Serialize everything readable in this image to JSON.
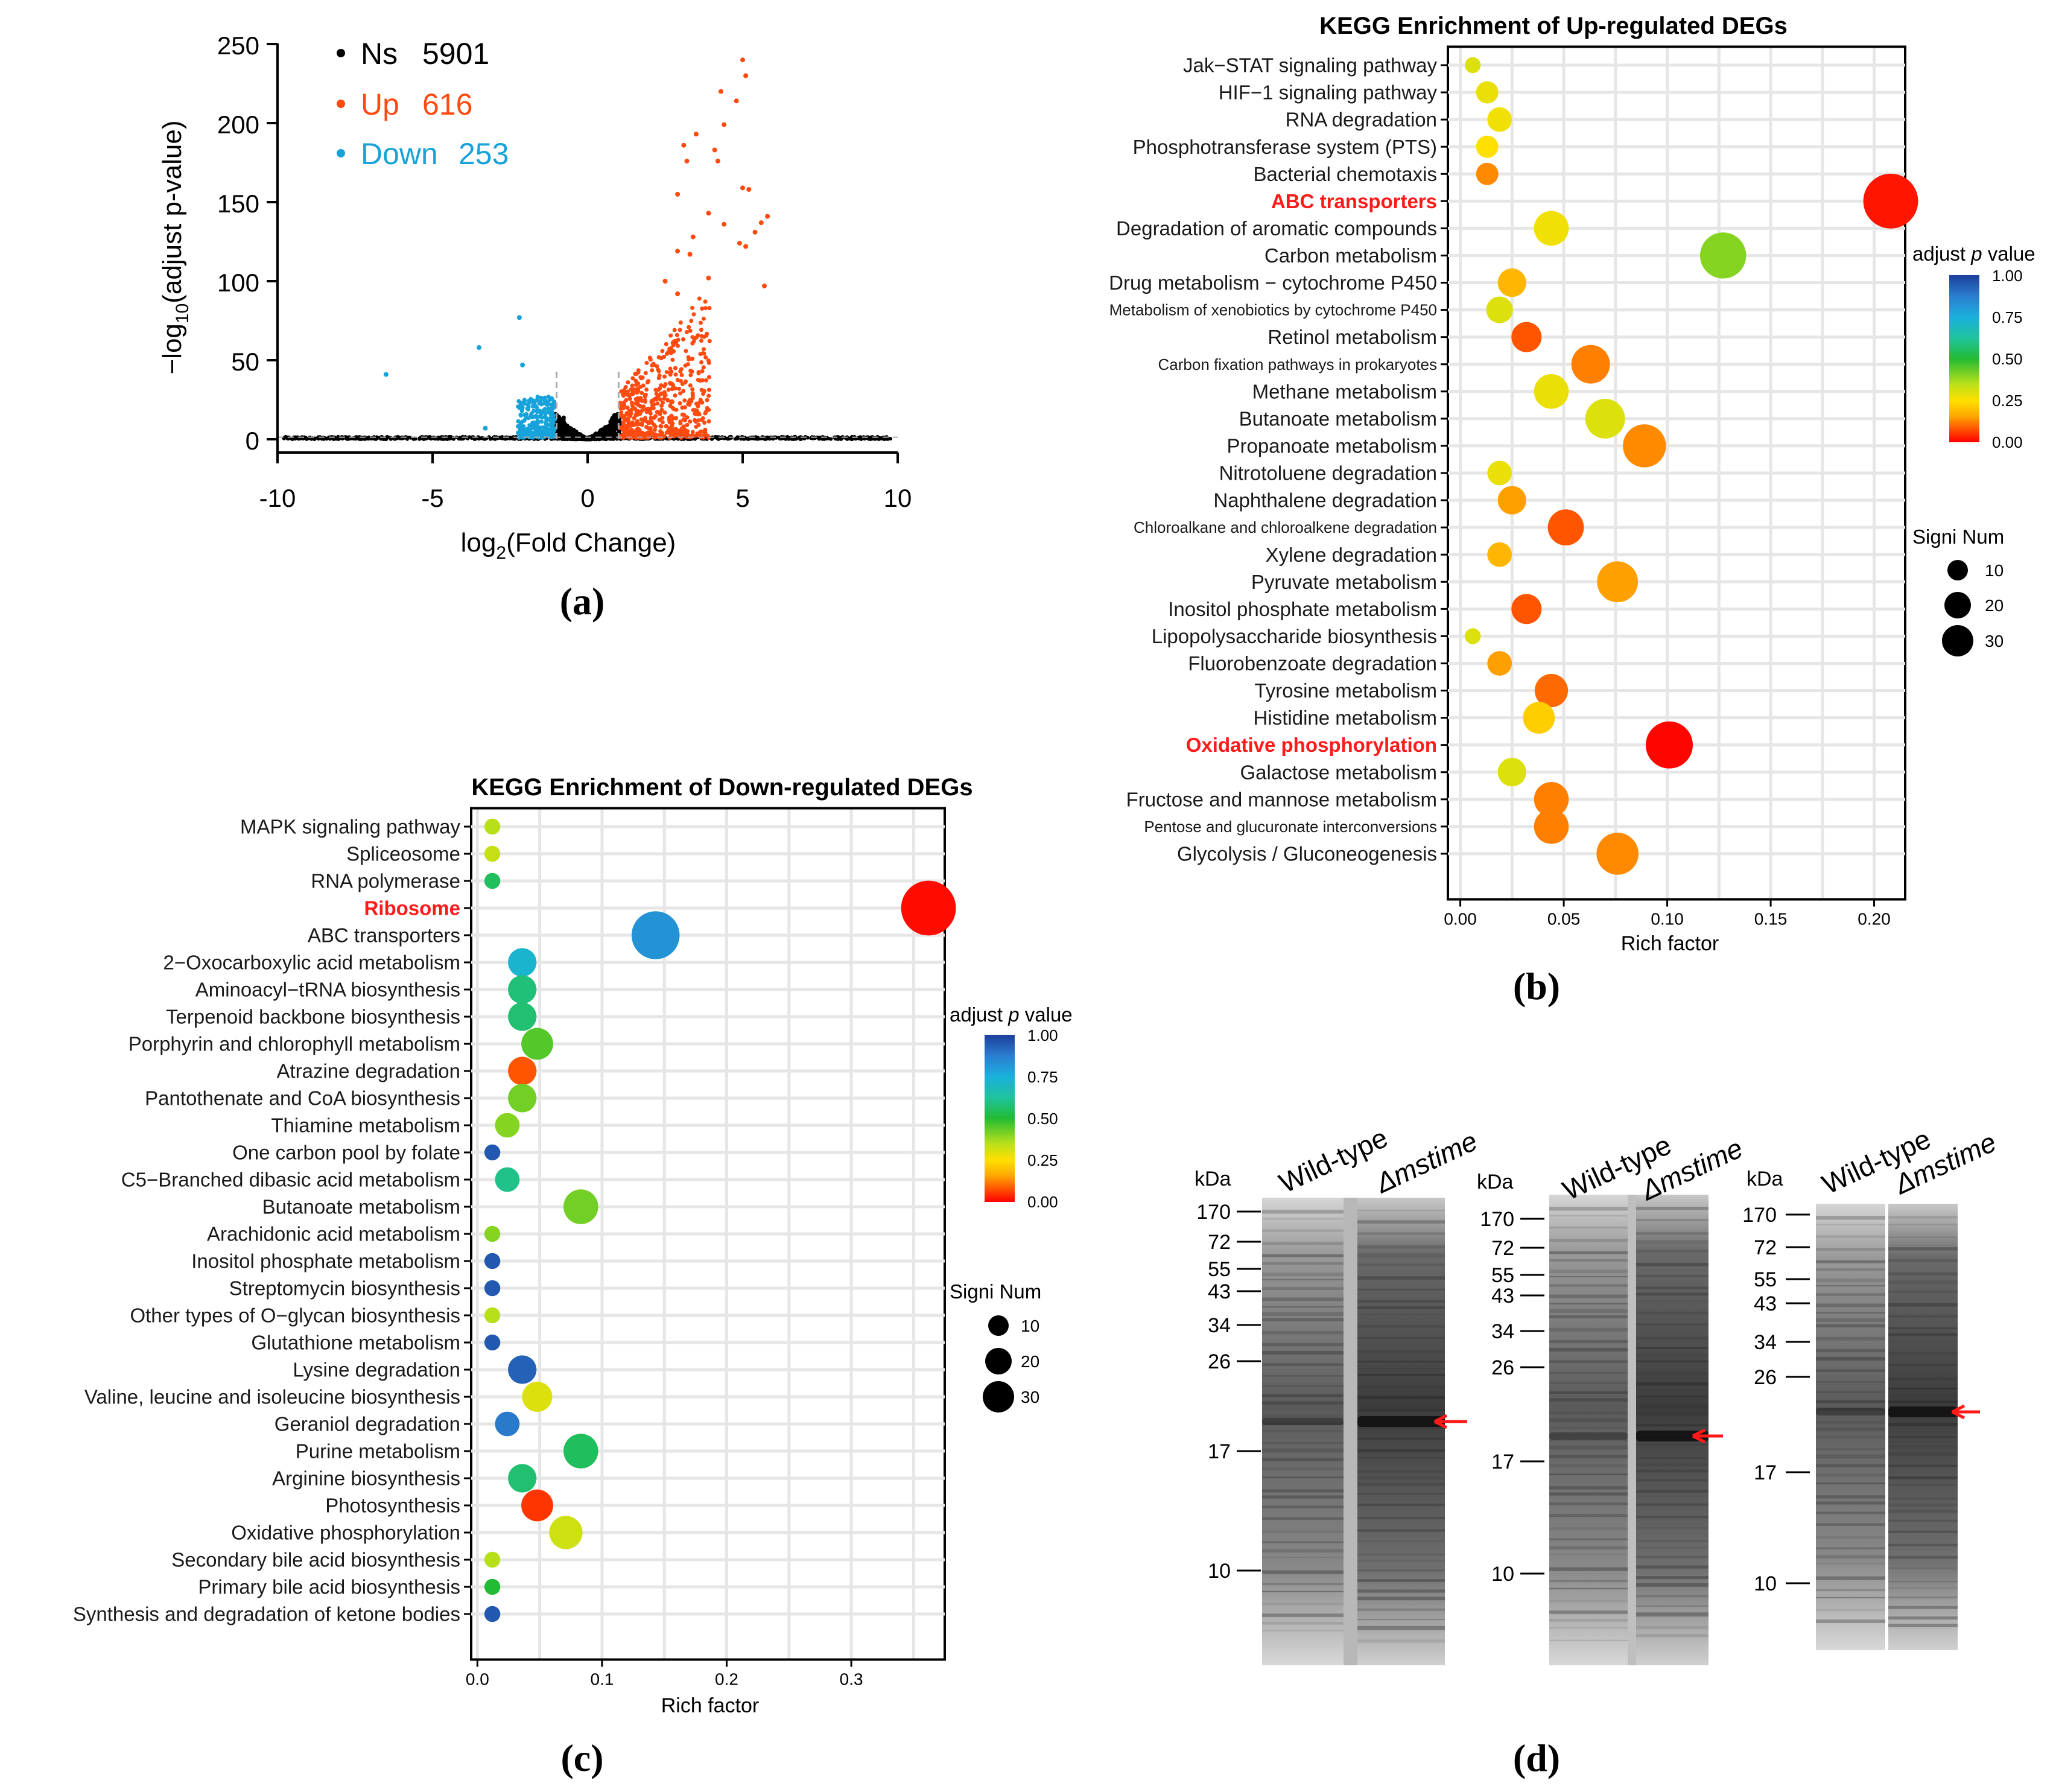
{
  "colors": {
    "ns": "#000000",
    "up": "#ff4a10",
    "down": "#17a3d9",
    "highlight": "#ff1a1a",
    "gel_arrow": "#ff1a1a"
  },
  "panel_labels": {
    "a": "(a)",
    "b": "(b)",
    "c": "(c)",
    "d": "(d)"
  },
  "chart_data": [
    {
      "id": "volcano",
      "type": "scatter",
      "xlabel_main": "log",
      "xlabel_sub": "2",
      "xlabel_rest": "(Fold Change)",
      "ylabel_main": "−log",
      "ylabel_sub": "10",
      "ylabel_rest": "(adjust p-value)",
      "xlim": [
        -10,
        10
      ],
      "ylim": [
        -8,
        250
      ],
      "xticks": [
        -10,
        -5,
        0,
        5,
        10
      ],
      "yticks": [
        0,
        50,
        100,
        150,
        200,
        250
      ],
      "xtick_labels": [
        "-10",
        "-5",
        "0",
        "5",
        "10"
      ],
      "ytick_labels": [
        "0",
        "50",
        "100",
        "150",
        "200",
        "250"
      ],
      "thresholds_x": [
        -1,
        1
      ],
      "legend": [
        {
          "key": "ns",
          "name": "Ns",
          "count": "5901"
        },
        {
          "key": "up",
          "name": "Up",
          "count": "616"
        },
        {
          "key": "down",
          "name": "Down",
          "count": "253"
        }
      ],
      "up_outliers": [
        [
          5.0,
          240
        ],
        [
          5.1,
          230
        ],
        [
          4.8,
          214
        ],
        [
          4.3,
          220
        ],
        [
          4.4,
          199
        ],
        [
          3.5,
          193
        ],
        [
          3.1,
          186
        ],
        [
          4.1,
          183
        ],
        [
          4.2,
          176
        ],
        [
          3.2,
          176
        ],
        [
          5.0,
          159
        ],
        [
          5.2,
          158
        ],
        [
          2.9,
          155
        ],
        [
          3.9,
          143
        ],
        [
          5.8,
          141
        ],
        [
          5.6,
          137
        ],
        [
          4.4,
          136
        ],
        [
          5.4,
          131
        ],
        [
          3.4,
          128
        ],
        [
          4.9,
          124
        ],
        [
          5.1,
          122
        ],
        [
          2.9,
          119
        ],
        [
          3.3,
          117
        ],
        [
          3.9,
          102
        ],
        [
          5.7,
          97
        ],
        [
          2.5,
          100
        ],
        [
          2.9,
          92
        ]
      ],
      "down_outliers": [
        [
          -6.5,
          41
        ],
        [
          -2.2,
          77
        ],
        [
          -3.5,
          58
        ],
        [
          -2.1,
          47
        ],
        [
          -3.3,
          7
        ]
      ]
    },
    {
      "id": "kegg_up",
      "type": "scatter",
      "title": "KEGG Enrichment of Up-regulated DEGs",
      "xlabel": "Rich factor",
      "xlim": [
        -0.006,
        0.215
      ],
      "xticks": [
        0.0,
        0.05,
        0.1,
        0.15,
        0.2
      ],
      "xtick_labels": [
        "0.00",
        "0.05",
        "0.10",
        "0.15",
        "0.20"
      ],
      "colorbar_title_a": "adjust ",
      "colorbar_title_p": "p",
      "colorbar_title_b": " value",
      "colorbar_ticks": [
        "1.00",
        "0.75",
        "0.50",
        "0.25",
        "0.00"
      ],
      "size_title": "Signi Num",
      "size_legend": [
        10,
        20,
        30
      ],
      "size_legend_labels": [
        "10",
        "20",
        "30"
      ],
      "pathways": [
        {
          "label": "Jak−STAT signaling pathway",
          "rich": 0.006,
          "p": 0.3,
          "count": 1,
          "small": false,
          "highlight": false
        },
        {
          "label": "HIF−1 signaling pathway",
          "rich": 0.013,
          "p": 0.28,
          "count": 3,
          "small": false,
          "highlight": false
        },
        {
          "label": "RNA degradation",
          "rich": 0.019,
          "p": 0.27,
          "count": 4,
          "small": false,
          "highlight": false
        },
        {
          "label": "Phosphotransferase system (PTS)",
          "rich": 0.013,
          "p": 0.25,
          "count": 3,
          "small": false,
          "highlight": false
        },
        {
          "label": "Bacterial chemotaxis",
          "rich": 0.013,
          "p": 0.13,
          "count": 3,
          "small": false,
          "highlight": false
        },
        {
          "label": "ABC transporters",
          "rich": 0.208,
          "p": 0.02,
          "count": 30,
          "small": false,
          "highlight": true
        },
        {
          "label": "Degradation of aromatic compounds",
          "rich": 0.044,
          "p": 0.27,
          "count": 10,
          "small": false,
          "highlight": false
        },
        {
          "label": "Carbon metabolism",
          "rich": 0.127,
          "p": 0.4,
          "count": 20,
          "small": false,
          "highlight": false
        },
        {
          "label": "Drug metabolism − cytochrome P450",
          "rich": 0.025,
          "p": 0.18,
          "count": 6,
          "small": false,
          "highlight": false
        },
        {
          "label": "Metabolism of xenobiotics by cytochrome P450",
          "rich": 0.019,
          "p": 0.3,
          "count": 5,
          "small": true,
          "highlight": false
        },
        {
          "label": "Retinol metabolism",
          "rich": 0.032,
          "p": 0.08,
          "count": 7,
          "small": false,
          "highlight": false
        },
        {
          "label": "Carbon fixation pathways in prokaryotes",
          "rich": 0.063,
          "p": 0.12,
          "count": 13,
          "small": true,
          "highlight": false
        },
        {
          "label": "Methane metabolism",
          "rich": 0.044,
          "p": 0.28,
          "count": 10,
          "small": false,
          "highlight": false
        },
        {
          "label": "Butanoate metabolism",
          "rich": 0.07,
          "p": 0.3,
          "count": 14,
          "small": false,
          "highlight": false
        },
        {
          "label": "Propanoate metabolism",
          "rich": 0.089,
          "p": 0.13,
          "count": 17,
          "small": false,
          "highlight": false
        },
        {
          "label": "Nitrotoluene degradation",
          "rich": 0.019,
          "p": 0.28,
          "count": 4,
          "small": false,
          "highlight": false
        },
        {
          "label": "Naphthalene degradation",
          "rich": 0.025,
          "p": 0.15,
          "count": 6,
          "small": false,
          "highlight": false
        },
        {
          "label": "Chloroalkane and chloroalkene degradation",
          "rich": 0.051,
          "p": 0.08,
          "count": 11,
          "small": true,
          "highlight": false
        },
        {
          "label": "Xylene degradation",
          "rich": 0.019,
          "p": 0.18,
          "count": 4,
          "small": false,
          "highlight": false
        },
        {
          "label": "Pyruvate metabolism",
          "rich": 0.076,
          "p": 0.15,
          "count": 15,
          "small": false,
          "highlight": false
        },
        {
          "label": "Inositol phosphate metabolism",
          "rich": 0.032,
          "p": 0.08,
          "count": 7,
          "small": false,
          "highlight": false
        },
        {
          "label": "Lipopolysaccharide biosynthesis",
          "rich": 0.006,
          "p": 0.3,
          "count": 1,
          "small": false,
          "highlight": false
        },
        {
          "label": "Fluorobenzoate degradation",
          "rich": 0.019,
          "p": 0.15,
          "count": 4,
          "small": false,
          "highlight": false
        },
        {
          "label": "Tyrosine metabolism",
          "rich": 0.044,
          "p": 0.1,
          "count": 9,
          "small": false,
          "highlight": false
        },
        {
          "label": "Histidine metabolism",
          "rich": 0.038,
          "p": 0.22,
          "count": 8,
          "small": false,
          "highlight": false
        },
        {
          "label": "Oxidative phosphorylation",
          "rich": 0.101,
          "p": 0.005,
          "count": 21,
          "small": false,
          "highlight": true
        },
        {
          "label": "Galactose metabolism",
          "rich": 0.025,
          "p": 0.3,
          "count": 6,
          "small": false,
          "highlight": false
        },
        {
          "label": "Fructose and mannose metabolism",
          "rich": 0.044,
          "p": 0.12,
          "count": 10,
          "small": false,
          "highlight": false
        },
        {
          "label": "Pentose and glucuronate  interconversions",
          "rich": 0.044,
          "p": 0.12,
          "count": 10,
          "small": true,
          "highlight": false
        },
        {
          "label": "Glycolysis / Gluconeogenesis",
          "rich": 0.076,
          "p": 0.13,
          "count": 16,
          "small": false,
          "highlight": false
        }
      ]
    },
    {
      "id": "kegg_down",
      "type": "scatter",
      "title": "KEGG Enrichment of Down-regulated DEGs",
      "xlabel": "Rich factor",
      "xlim": [
        -0.005,
        0.375
      ],
      "xticks": [
        0.0,
        0.1,
        0.2,
        0.3
      ],
      "xtick_labels": [
        "0.0",
        "0.1",
        "0.2",
        "0.3"
      ],
      "colorbar_title_a": "adjust ",
      "colorbar_title_p": "p",
      "colorbar_title_b": " value",
      "colorbar_ticks": [
        "1.00",
        "0.75",
        "0.50",
        "0.25",
        "0.00"
      ],
      "size_title": "Signi Num",
      "size_legend": [
        10,
        20,
        30
      ],
      "size_legend_labels": [
        "10",
        "20",
        "30"
      ],
      "pathways": [
        {
          "label": "MAPK signaling pathway",
          "rich": 0.012,
          "p": 0.35,
          "count": 1,
          "highlight": false
        },
        {
          "label": "Spliceosome",
          "rich": 0.012,
          "p": 0.33,
          "count": 1,
          "highlight": false
        },
        {
          "label": "RNA polymerase",
          "rich": 0.012,
          "p": 0.55,
          "count": 1,
          "highlight": false
        },
        {
          "label": "Ribosome",
          "rich": 0.362,
          "p": 0.01,
          "count": 30,
          "highlight": true
        },
        {
          "label": "ABC transporters",
          "rich": 0.143,
          "p": 0.82,
          "count": 22,
          "highlight": false
        },
        {
          "label": "2−Oxocarboxylic acid metabolism",
          "rich": 0.036,
          "p": 0.72,
          "count": 6,
          "highlight": false
        },
        {
          "label": "Aminoacyl−tRNA biosynthesis",
          "rich": 0.036,
          "p": 0.58,
          "count": 6,
          "highlight": false
        },
        {
          "label": "Terpenoid backbone biosynthesis",
          "rich": 0.036,
          "p": 0.57,
          "count": 6,
          "highlight": false
        },
        {
          "label": "Porphyrin and chlorophyll metabolism",
          "rich": 0.048,
          "p": 0.45,
          "count": 8,
          "highlight": false
        },
        {
          "label": "Atrazine degradation",
          "rich": 0.036,
          "p": 0.08,
          "count": 6,
          "highlight": false
        },
        {
          "label": "Pantothenate and CoA biosynthesis",
          "rich": 0.036,
          "p": 0.42,
          "count": 6,
          "highlight": false
        },
        {
          "label": "Thiamine metabolism",
          "rich": 0.024,
          "p": 0.4,
          "count": 4,
          "highlight": false
        },
        {
          "label": "One carbon pool by folate",
          "rich": 0.012,
          "p": 0.95,
          "count": 1,
          "highlight": false
        },
        {
          "label": "C5−Branched dibasic acid metabolism",
          "rich": 0.024,
          "p": 0.6,
          "count": 4,
          "highlight": false
        },
        {
          "label": "Butanoate metabolism",
          "rich": 0.083,
          "p": 0.42,
          "count": 10,
          "highlight": false
        },
        {
          "label": "Arachidonic acid metabolism",
          "rich": 0.012,
          "p": 0.4,
          "count": 1,
          "highlight": false
        },
        {
          "label": "Inositol phosphate metabolism",
          "rich": 0.012,
          "p": 0.95,
          "count": 1,
          "highlight": false
        },
        {
          "label": "Streptomycin biosynthesis",
          "rich": 0.012,
          "p": 0.95,
          "count": 1,
          "highlight": false
        },
        {
          "label": "Other types of O−glycan biosynthesis",
          "rich": 0.012,
          "p": 0.35,
          "count": 1,
          "highlight": false
        },
        {
          "label": "Glutathione metabolism",
          "rich": 0.012,
          "p": 0.95,
          "count": 1,
          "highlight": false
        },
        {
          "label": "Lysine degradation",
          "rich": 0.036,
          "p": 0.93,
          "count": 6,
          "highlight": false
        },
        {
          "label": "Valine, leucine and isoleucine biosynthesis",
          "rich": 0.048,
          "p": 0.3,
          "count": 7,
          "highlight": false
        },
        {
          "label": "Geraniol degradation",
          "rich": 0.024,
          "p": 0.88,
          "count": 4,
          "highlight": false
        },
        {
          "label": "Purine metabolism",
          "rich": 0.083,
          "p": 0.55,
          "count": 10,
          "highlight": false
        },
        {
          "label": "Arginine biosynthesis",
          "rich": 0.036,
          "p": 0.57,
          "count": 6,
          "highlight": false
        },
        {
          "label": "Photosynthesis",
          "rich": 0.048,
          "p": 0.05,
          "count": 8,
          "highlight": false
        },
        {
          "label": "Oxidative phosphorylation",
          "rich": 0.071,
          "p": 0.32,
          "count": 9,
          "highlight": false
        },
        {
          "label": "Secondary bile acid biosynthesis",
          "rich": 0.012,
          "p": 0.35,
          "count": 1,
          "highlight": false
        },
        {
          "label": "Primary bile acid biosynthesis",
          "rich": 0.012,
          "p": 0.5,
          "count": 1,
          "highlight": false
        },
        {
          "label": "Synthesis and degradation of ketone bodies",
          "rich": 0.012,
          "p": 0.95,
          "count": 1,
          "highlight": false
        }
      ]
    }
  ],
  "gels": {
    "unit": "kDa",
    "lane_labels": [
      "Wild-type",
      "Δmstime"
    ],
    "blots": [
      {
        "markers": [
          "170",
          "72",
          "55",
          "43",
          "34",
          "26",
          "17",
          "10"
        ]
      },
      {
        "markers": [
          "170",
          "72",
          "55",
          "43",
          "34",
          "26",
          "17",
          "10"
        ]
      },
      {
        "markers": [
          "170",
          "72",
          "55",
          "43",
          "34",
          "26",
          "17",
          "10"
        ]
      }
    ]
  }
}
